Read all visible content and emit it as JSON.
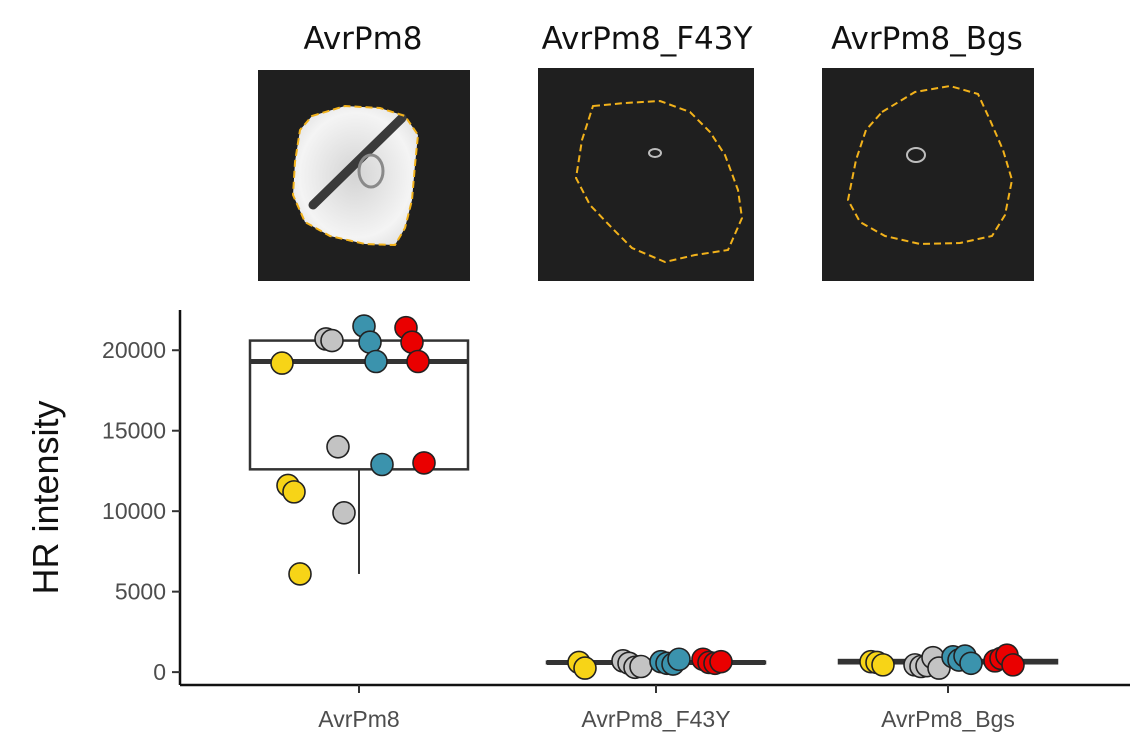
{
  "panels": [
    {
      "title": "AvrPm8",
      "signal": "strong"
    },
    {
      "title": "AvrPm8_F43Y",
      "signal": "faint"
    },
    {
      "title": "AvrPm8_Bgs",
      "signal": "faint"
    }
  ],
  "chart_data": {
    "type": "boxplot",
    "categories": [
      "AvrPm8",
      "AvrPm8_F43Y",
      "AvrPm8_Bgs"
    ],
    "ylabel": "HR intensity",
    "xlabel": "",
    "ylim": [
      -800,
      22500
    ],
    "yticks": [
      0,
      5000,
      10000,
      15000,
      20000
    ],
    "grid": false,
    "colors": {
      "yellow": "#f7d417",
      "grey": "#c3c3c3",
      "blue": "#3b93ad",
      "red": "#ea0000",
      "outline": "#222222"
    },
    "boxes": [
      {
        "category": "AvrPm8",
        "q1": 12600,
        "median": 19300,
        "q3": 20600,
        "whisker_low": 6100,
        "whisker_high": 20600
      },
      {
        "category": "AvrPm8_F43Y",
        "q1": 550,
        "median": 600,
        "q3": 650,
        "whisker_low": 550,
        "whisker_high": 650
      },
      {
        "category": "AvrPm8_Bgs",
        "q1": 550,
        "median": 650,
        "q3": 750,
        "whisker_low": 550,
        "whisker_high": 750
      }
    ],
    "points": [
      {
        "category": "AvrPm8",
        "color": "yellow",
        "values": [
          19200,
          11600,
          11200,
          6100
        ]
      },
      {
        "category": "AvrPm8",
        "color": "grey",
        "values": [
          20700,
          20600,
          14000,
          9900
        ]
      },
      {
        "category": "AvrPm8",
        "color": "blue",
        "values": [
          21500,
          20500,
          19300,
          12900
        ]
      },
      {
        "category": "AvrPm8",
        "color": "red",
        "values": [
          21400,
          20500,
          19300,
          13000
        ]
      },
      {
        "category": "AvrPm8_F43Y",
        "color": "yellow",
        "values": [
          600,
          250
        ]
      },
      {
        "category": "AvrPm8_F43Y",
        "color": "grey",
        "values": [
          700,
          550,
          300,
          350
        ]
      },
      {
        "category": "AvrPm8_F43Y",
        "color": "blue",
        "values": [
          650,
          550,
          500,
          800
        ]
      },
      {
        "category": "AvrPm8_F43Y",
        "color": "red",
        "values": [
          800,
          600,
          550,
          650
        ]
      },
      {
        "category": "AvrPm8_Bgs",
        "color": "yellow",
        "values": [
          650,
          600,
          450
        ]
      },
      {
        "category": "AvrPm8_Bgs",
        "color": "grey",
        "values": [
          450,
          350,
          400,
          900,
          250
        ]
      },
      {
        "category": "AvrPm8_Bgs",
        "color": "blue",
        "values": [
          950,
          750,
          1000,
          550
        ]
      },
      {
        "category": "AvrPm8_Bgs",
        "color": "red",
        "values": [
          700,
          850,
          1050,
          450
        ]
      }
    ]
  }
}
